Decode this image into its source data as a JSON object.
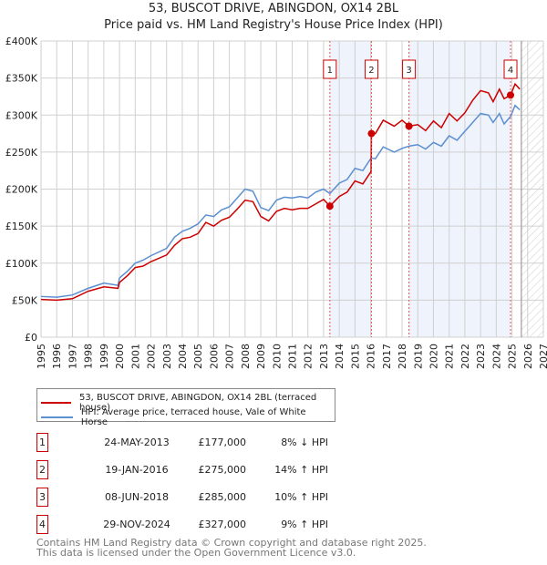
{
  "chart_data": {
    "type": "line",
    "title": "53, BUSCOT DRIVE, ABINGDON, OX14 2BL",
    "subtitle": "Price paid vs. HM Land Registry's House Price Index (HPI)",
    "xlim": [
      1995,
      2027
    ],
    "ylim": [
      0,
      400000
    ],
    "x_ticks": [
      "1995",
      "1996",
      "1997",
      "1998",
      "1999",
      "2000",
      "2001",
      "2002",
      "2003",
      "2004",
      "2005",
      "2006",
      "2007",
      "2008",
      "2009",
      "2010",
      "2011",
      "2012",
      "2013",
      "2014",
      "2015",
      "2016",
      "2017",
      "2018",
      "2019",
      "2020",
      "2021",
      "2022",
      "2023",
      "2024",
      "2025",
      "2026",
      "2027"
    ],
    "y_ticks": [
      "£0",
      "£50K",
      "£100K",
      "£150K",
      "£200K",
      "£250K",
      "£300K",
      "£350K",
      "£400K"
    ],
    "x": [
      1995,
      1996,
      1997,
      1998,
      1999,
      1999.9,
      2000,
      2000.5,
      2001,
      2001.5,
      2002,
      2003,
      2003.5,
      2004,
      2004.5,
      2005,
      2005.5,
      2006,
      2006.5,
      2007,
      2007.5,
      2008,
      2008.5,
      2009,
      2009.5,
      2010,
      2010.5,
      2011,
      2011.5,
      2012,
      2012.5,
      2013,
      2013.4,
      2014,
      2014.5,
      2015,
      2015.5,
      2016.03,
      2016.05,
      2016.3,
      2016.8,
      2017.5,
      2018,
      2018.44,
      2019,
      2019.5,
      2020,
      2020.5,
      2021,
      2021.5,
      2022,
      2022.5,
      2023,
      2023.5,
      2023.8,
      2024.2,
      2024.5,
      2024.91,
      2025.2,
      2025.5
    ],
    "series": [
      {
        "name": "53, BUSCOT DRIVE, ABINGDON, OX14 2BL (terraced house)",
        "color": "#cc0000",
        "values": [
          51,
          50,
          52,
          62,
          68,
          66,
          74,
          83,
          94,
          96,
          102,
          111,
          124,
          133,
          135,
          140,
          155,
          150,
          158,
          162,
          173,
          185,
          183,
          163,
          157,
          170,
          174,
          172,
          174,
          174,
          180,
          186,
          177,
          190,
          196,
          211,
          207,
          224,
          275,
          275,
          293,
          285,
          293,
          285,
          287,
          279,
          292,
          283,
          302,
          292,
          303,
          320,
          333,
          330,
          318,
          335,
          322,
          327,
          342,
          335
        ]
      },
      {
        "name": "HPI: Average price, terraced house, Vale of White Horse",
        "color": "#5b8fd1",
        "values": [
          55,
          54,
          57,
          66,
          73,
          70,
          80,
          89,
          100,
          104,
          110,
          120,
          135,
          143,
          147,
          153,
          165,
          163,
          172,
          176,
          188,
          200,
          197,
          175,
          171,
          185,
          189,
          188,
          190,
          188,
          196,
          200,
          194,
          208,
          213,
          228,
          225,
          242,
          242,
          241,
          257,
          250,
          255,
          258,
          260,
          254,
          263,
          258,
          272,
          266,
          278,
          290,
          302,
          300,
          290,
          302,
          288,
          298,
          313,
          307
        ]
      }
    ],
    "value_unit": "£ thousands",
    "sales": [
      {
        "n": "1",
        "date": "24-MAY-2013",
        "x": 2013.4,
        "price": "£177,000",
        "value": 177,
        "hpi": "8% ↓ HPI"
      },
      {
        "n": "2",
        "date": "19-JAN-2016",
        "x": 2016.05,
        "price": "£275,000",
        "value": 275,
        "hpi": "14% ↑ HPI"
      },
      {
        "n": "3",
        "date": "08-JUN-2018",
        "x": 2018.44,
        "price": "£285,000",
        "value": 285,
        "hpi": "10% ↑ HPI"
      },
      {
        "n": "4",
        "date": "29-NOV-2024",
        "x": 2024.91,
        "price": "£327,000",
        "value": 327,
        "hpi": "9% ↑ HPI"
      }
    ],
    "shaded_ranges": [
      [
        2013.4,
        2016.05
      ],
      [
        2018.44,
        2024.91
      ]
    ],
    "forecast_start": 2025.6,
    "grid": true
  },
  "footer": {
    "line1": "Contains HM Land Registry data © Crown copyright and database right 2025.",
    "line2": "This data is licensed under the Open Government Licence v3.0."
  }
}
